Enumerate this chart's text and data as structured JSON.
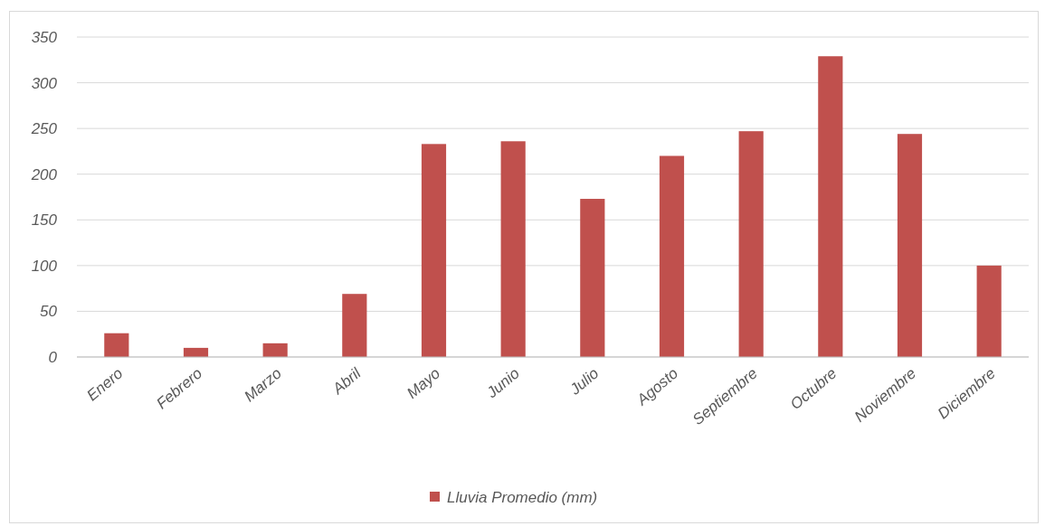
{
  "chart_data": {
    "type": "bar",
    "categories": [
      "Enero",
      "Febrero",
      "Marzo",
      "Abril",
      "Mayo",
      "Junio",
      "Julio",
      "Agosto",
      "Septiembre",
      "Octubre",
      "Noviembre",
      "Diciembre"
    ],
    "series": [
      {
        "name": "Lluvia Promedio (mm)",
        "color": "#c0504d",
        "values": [
          26,
          10,
          15,
          69,
          233,
          236,
          173,
          220,
          247,
          329,
          244,
          100
        ]
      }
    ],
    "ylim": [
      0,
      350
    ],
    "yticks": [
      0,
      50,
      100,
      150,
      200,
      250,
      300,
      350
    ],
    "grid": "y",
    "legend": "bottom"
  }
}
